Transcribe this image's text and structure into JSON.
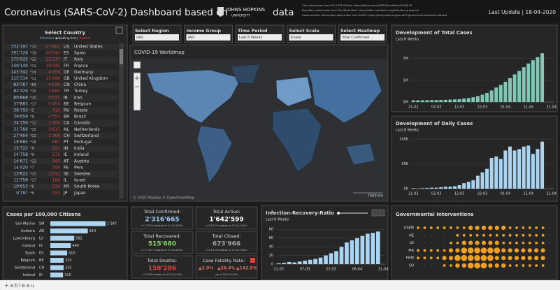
{
  "header": {
    "title": "Coronavirus (SARS-CoV-2) Dashboard based on",
    "logo_top": "JOHNS HOPKINS",
    "logo_bottom": "UNIVERSITY",
    "title_end": "data",
    "sources": [
      "Case data drawn from JHU CSSE Github: https://github.com/CSSEGISandData/COVID-19",
      "Population data drawn from The World Bank: https://data.worldbank.org/indicator/sp.pop.totl",
      "Governmental intervention data drawn from ACAPS: https://www.acaps.org/covid19-government-measures-dataset"
    ],
    "last_update": "Last Update | 18-04-2020"
  },
  "country_table": {
    "title": "Select Country",
    "legend": [
      "(Infections",
      " ◆doubling time | ",
      "Deaths)"
    ],
    "rows": [
      [
        "732'197",
        "*13",
        "27'862",
        "US",
        "United States"
      ],
      [
        "191'726",
        "*19",
        "20'043",
        "ES",
        "Spain"
      ],
      [
        "175'925",
        "*22",
        "22'237",
        "IT",
        "Italy"
      ],
      [
        "149'149",
        "*11",
        "19'345",
        "FR",
        "France"
      ],
      [
        "143'342",
        "*19",
        "4'459",
        "DE",
        "Germany"
      ],
      [
        "115'314",
        "*11",
        "15'498",
        "GB",
        "United Kingdom"
      ],
      [
        "83'787",
        "*69",
        "4'636",
        "CN",
        "China"
      ],
      [
        "82'329",
        "*10",
        "1'890",
        "TR",
        "Turkey"
      ],
      [
        "80'868",
        "*20",
        "5'031",
        "IR",
        "Iran"
      ],
      [
        "37'883",
        "*17",
        "5'453",
        "BE",
        "Belgium"
      ],
      [
        "36'793",
        "*5",
        "313",
        "RU",
        "Russia"
      ],
      [
        "36'658",
        "*9",
        "2'354",
        "BR",
        "Brazil"
      ],
      [
        "34'356",
        "*12",
        "1'400",
        "CA",
        "Canada"
      ],
      [
        "31'766",
        "*15",
        "3'613",
        "NL",
        "Netherlands"
      ],
      [
        "27'404",
        "*22",
        "1'368",
        "CH",
        "Switzerland"
      ],
      [
        "19'685",
        "*16",
        "687",
        "PT",
        "Portugal"
      ],
      [
        "15'722",
        "*8",
        "521",
        "IN",
        "India"
      ],
      [
        "14'758",
        "*9",
        "571",
        "IE",
        "Ireland"
      ],
      [
        "14'671",
        "*23",
        "443",
        "AT",
        "Austria"
      ],
      [
        "14'420",
        "*7",
        "348",
        "PE",
        "Peru"
      ],
      [
        "13'822",
        "*13",
        "1'511",
        "SE",
        "Sweden"
      ],
      [
        "12'758",
        "*17",
        "164",
        "IL",
        "Israel"
      ],
      [
        "10'653",
        "*6",
        "232",
        "KR",
        "South Korea"
      ],
      [
        "9'787",
        "*6",
        "292",
        "JP",
        "Japan"
      ]
    ]
  },
  "filters": [
    {
      "label": "Select Region",
      "value": "(All)"
    },
    {
      "label": "Income Group",
      "value": "(All)"
    },
    {
      "label": "Time Period",
      "value": "Last 8 Weeks"
    },
    {
      "label": "Select Scale",
      "value": "Linear"
    },
    {
      "label": "Select Heatmap",
      "value": "Total Confirmed ..."
    }
  ],
  "map": {
    "title": "COVID-19 Worldmap",
    "attribution": "© 2020 Mapbox © OpenStreetMap",
    "scale": "7500 km"
  },
  "kpis": [
    {
      "title": "Total Confirmed:",
      "value": "2'316'665",
      "note": "(+77'555 relative to 17-04-2020)"
    },
    {
      "title": "Total Active:",
      "value": "1'642'599",
      "note": "(+53'125 relative to 17-04-2020)"
    },
    {
      "title": "Total Recovered:",
      "value": "515'680",
      "note": "(+17'247 relative to 17-04-2020)"
    },
    {
      "title": "Total Closed:",
      "value": "673'966",
      "note": "(+24'430 relative to 17-04-2020)"
    },
    {
      "title": "Total Deaths:",
      "value": "158'286",
      "note": "(+7'183 relative to 17-04-2020)"
    }
  ],
  "fatality": {
    "title": "Case Fatality Rate:",
    "values": [
      "▲3.9%",
      "▲20.4%",
      "▲142.5%"
    ],
    "note": "(as of 18-04-2020)"
  },
  "footer": "+ableau",
  "chart_data": [
    {
      "type": "bar",
      "title": "Development of Total Cases",
      "subtitle": "Last 8 Weeks",
      "color": "#7fc7b6",
      "grid": true,
      "categories": [
        "21-02",
        null,
        null,
        null,
        null,
        "02-03",
        null,
        null,
        null,
        null,
        "12-03",
        null,
        null,
        null,
        null,
        "22-03",
        null,
        null,
        null,
        null,
        "01-04",
        null,
        null,
        null,
        null,
        "11-04",
        null,
        null,
        null,
        null,
        "21-04"
      ],
      "values": [
        77000,
        79000,
        81000,
        83000,
        87000,
        90000,
        95000,
        102000,
        110000,
        119000,
        128000,
        157000,
        182000,
        218000,
        272000,
        338000,
        418000,
        530000,
        664000,
        784000,
        932000,
        1100000,
        1270000,
        1430000,
        1600000,
        1770000,
        1920000,
        2060000,
        2240000,
        null,
        null
      ],
      "ylim": [
        0,
        2600000
      ],
      "yticks": [
        {
          "value": 0,
          "label": "0M"
        },
        {
          "value": 1000000,
          "label": "1M"
        },
        {
          "value": 2000000,
          "label": "2M"
        }
      ]
    },
    {
      "type": "bar",
      "title": "Development of Daily Cases",
      "subtitle": "Last 8 Weeks",
      "color": "#a9d4f2",
      "grid": true,
      "categories": [
        "21-02",
        null,
        null,
        null,
        null,
        "02-03",
        null,
        null,
        null,
        null,
        "12-03",
        null,
        null,
        null,
        null,
        "22-03",
        null,
        null,
        null,
        null,
        "01-04",
        null,
        null,
        null,
        null,
        "11-04",
        null,
        null,
        null,
        null,
        "21-04"
      ],
      "values": [
        1000,
        500,
        1000,
        1500,
        2000,
        2000,
        3000,
        4000,
        4000,
        5000,
        7000,
        11000,
        14000,
        17000,
        26000,
        33000,
        40000,
        62000,
        65000,
        60000,
        77000,
        85000,
        77000,
        80000,
        85000,
        87000,
        70000,
        80000,
        95000,
        null,
        null
      ],
      "ylim": [
        0,
        110000
      ],
      "yticks": [
        {
          "value": 0,
          "label": "0K"
        },
        {
          "value": 50000,
          "label": "50K"
        },
        {
          "value": 100000,
          "label": "100K"
        }
      ]
    },
    {
      "type": "hbar",
      "title": "Cases per 100,000 Citizens",
      "color": "#aed4f0",
      "categories": [
        "San Marino",
        "Andorra",
        "Luxembourg",
        "Iceland",
        "Spain",
        "Belgium",
        "Switzerland",
        "Ireland"
      ],
      "codes": [
        "SM",
        "AD",
        "LU",
        "IS",
        "ES",
        "BE",
        "CH",
        "IE"
      ],
      "values": [
        1347,
        914,
        582,
        499,
        410,
        325,
        325,
        310
      ],
      "value_labels": [
        "1'347",
        "914",
        "582",
        "499",
        "410",
        "325",
        "325",
        "310"
      ],
      "xlim": [
        0,
        1500
      ]
    },
    {
      "type": "bar",
      "title": "Infection-Recovery-Ratio",
      "subtitle": "Last 8 Weeks",
      "color": "#a9d4f2",
      "grid": true,
      "categories": [
        "21-02",
        null,
        null,
        null,
        null,
        "07-03",
        null,
        null,
        null,
        null,
        "22-03",
        null,
        null,
        null,
        null,
        "06-04",
        null,
        null,
        null,
        null,
        "21-04"
      ],
      "values": [
        2,
        3,
        5,
        4,
        6,
        8,
        10,
        12,
        15,
        20,
        25,
        30,
        40,
        50,
        55,
        60,
        65,
        70,
        72,
        75,
        null
      ],
      "ylim": [
        0,
        90
      ],
      "yticks": [
        0,
        20,
        40,
        60,
        80
      ]
    },
    {
      "type": "dot",
      "title": "Governmental Interventions",
      "color": "#f0a020",
      "rows": [
        "GSEM",
        "HE",
        "LO",
        "MR",
        "PHM",
        "SO"
      ],
      "values": [
        [
          1,
          1,
          1,
          1,
          1,
          1,
          1,
          1,
          2,
          2,
          2,
          2,
          2,
          2,
          1,
          1,
          1,
          1,
          1,
          1,
          0
        ],
        [
          0,
          0,
          0,
          0,
          0,
          0,
          1,
          1,
          1,
          1,
          1,
          1,
          1,
          1,
          1,
          1,
          1,
          1,
          1,
          1,
          0
        ],
        [
          0,
          0,
          0,
          0,
          0,
          1,
          1,
          2,
          2,
          2,
          2,
          2,
          2,
          1,
          1,
          1,
          1,
          1,
          1,
          1,
          0
        ],
        [
          1,
          1,
          1,
          1,
          1,
          2,
          2,
          3,
          3,
          3,
          3,
          3,
          3,
          2,
          2,
          2,
          2,
          2,
          2,
          2,
          0
        ],
        [
          1,
          1,
          1,
          1,
          2,
          2,
          3,
          3,
          3,
          3,
          3,
          3,
          2,
          2,
          2,
          2,
          2,
          2,
          2,
          2,
          0
        ],
        [
          0,
          0,
          0,
          0,
          1,
          1,
          2,
          2,
          3,
          3,
          3,
          2,
          2,
          2,
          1,
          1,
          1,
          1,
          1,
          1,
          0
        ]
      ]
    }
  ]
}
